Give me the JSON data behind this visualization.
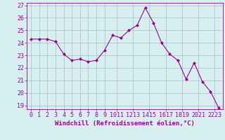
{
  "x": [
    0,
    1,
    2,
    3,
    4,
    5,
    6,
    7,
    8,
    9,
    10,
    11,
    12,
    13,
    14,
    15,
    16,
    17,
    18,
    19,
    20,
    21,
    22,
    23
  ],
  "y": [
    24.3,
    24.3,
    24.3,
    24.1,
    23.1,
    22.6,
    22.7,
    22.5,
    22.6,
    23.4,
    24.6,
    24.4,
    25.0,
    25.4,
    26.8,
    25.6,
    24.0,
    23.1,
    22.6,
    21.1,
    22.4,
    20.9,
    20.1,
    18.8
  ],
  "line_color": "#990099",
  "marker": "D",
  "marker_size": 2.0,
  "bg_color": "#d6f0f0",
  "grid_color": "#b0b8cc",
  "xlabel": "Windchill (Refroidissement éolien,°C)",
  "ylim_min": 18.7,
  "ylim_max": 27.2,
  "xlim_min": -0.5,
  "xlim_max": 23.5,
  "yticks": [
    19,
    20,
    21,
    22,
    23,
    24,
    25,
    26,
    27
  ],
  "xtick_labels": [
    "0",
    "1",
    "2",
    "3",
    "4",
    "5",
    "6",
    "7",
    "8",
    "9",
    "1011",
    "1213",
    "1415",
    "1617",
    "1819",
    "2021",
    "2223"
  ],
  "xlabel_fontsize": 6.5,
  "tick_fontsize": 6.0,
  "line_width": 0.8
}
